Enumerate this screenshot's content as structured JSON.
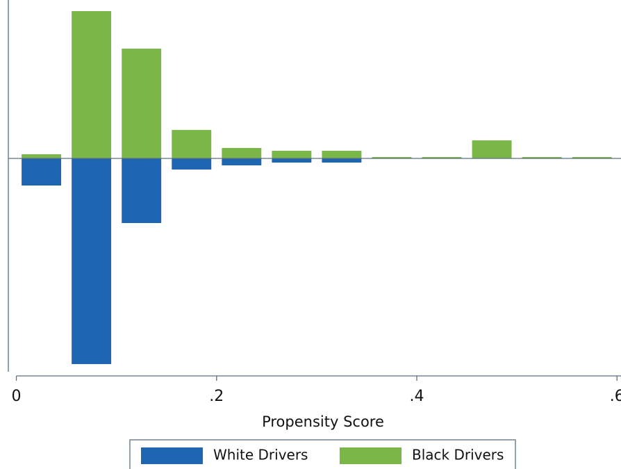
{
  "chart_data": {
    "type": "mirrored-histogram",
    "x_label": "Propensity Score",
    "bins": [
      0,
      0.05,
      0.1,
      0.15,
      0.2,
      0.25,
      0.3,
      0.35,
      0.4,
      0.45,
      0.5,
      0.55,
      0.6
    ],
    "series": [
      {
        "name": "White Drivers",
        "color": "#1f66b2",
        "values": [
          -3.9,
          -29.6,
          -9.3,
          -1.6,
          -1.0,
          -0.6,
          -0.6,
          0,
          0,
          0,
          0,
          0
        ]
      },
      {
        "name": "Black Drivers",
        "color": "#7ab648",
        "values": [
          0.6,
          21.2,
          15.8,
          4.1,
          1.5,
          1.1,
          1.1,
          0.2,
          0.2,
          2.6,
          0.2,
          0.2
        ]
      }
    ],
    "xlim": [
      -0.008,
      0.604
    ],
    "ylim": [
      -30.7,
      22.8
    ],
    "xticks": [
      0,
      {
        "value": 0.2,
        "label": ".2"
      },
      {
        "value": 0.4,
        "label": ".4"
      },
      {
        "value": 0.6,
        "label": ".6"
      }
    ],
    "legend": "bottom"
  }
}
